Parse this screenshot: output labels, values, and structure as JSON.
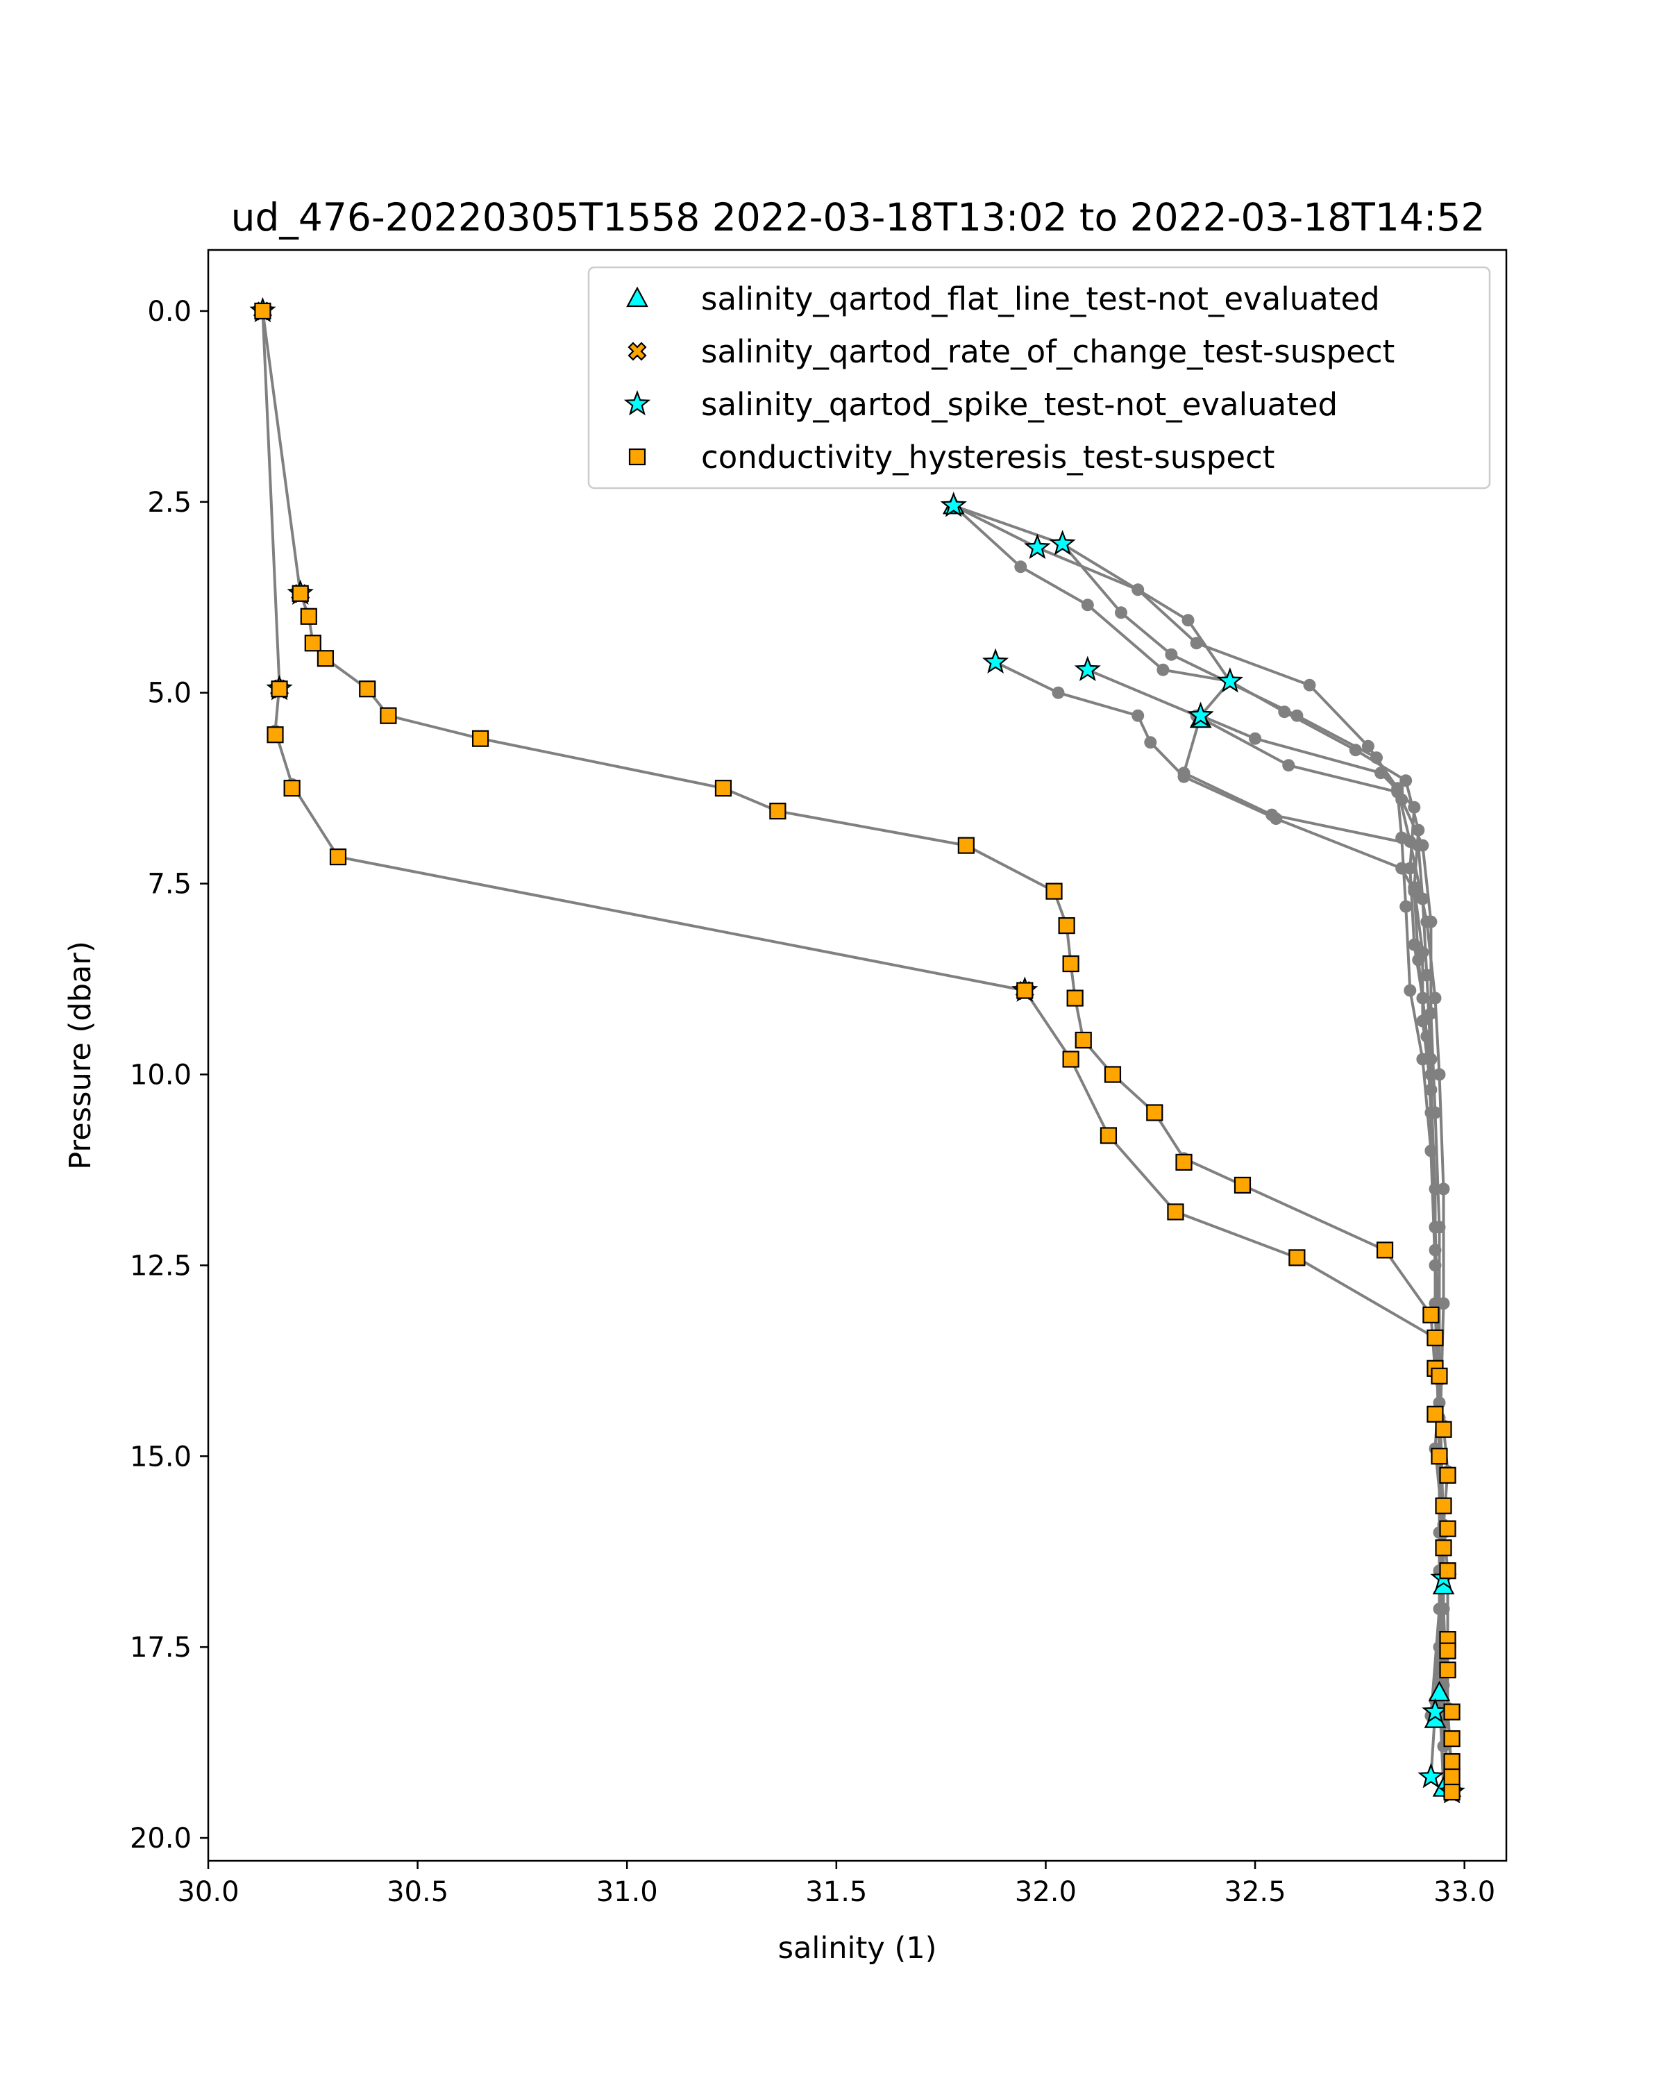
{
  "chart_data": {
    "type": "scatter",
    "title": "ud_476-20220305T1558 2022-03-18T13:02 to 2022-03-18T14:52",
    "xlabel": "salinity (1)",
    "ylabel": "Pressure (dbar)",
    "xlim": [
      30.0,
      33.1
    ],
    "ylim": [
      20.3,
      -0.8
    ],
    "y_inverted": true,
    "xticks": [
      30.0,
      30.5,
      31.0,
      31.5,
      32.0,
      32.5,
      33.0
    ],
    "xtick_labels": [
      "30.0",
      "30.5",
      "31.0",
      "31.5",
      "32.0",
      "32.5",
      "33.0"
    ],
    "yticks": [
      0.0,
      2.5,
      5.0,
      7.5,
      10.0,
      12.5,
      15.0,
      17.5,
      20.0
    ],
    "ytick_labels": [
      "0.0",
      "2.5",
      "5.0",
      "7.5",
      "10.0",
      "12.5",
      "15.0",
      "17.5",
      "20.0"
    ],
    "grid": false,
    "legend_position": "top-right",
    "colors": {
      "line": "#808080",
      "orange": "#FFA500",
      "cyan": "#00FFFF",
      "edge": "#000000"
    },
    "profile_lines": [
      {
        "points": [
          [
            30.13,
            0.0
          ],
          [
            30.17,
            4.9
          ],
          [
            30.16,
            5.5
          ],
          [
            30.2,
            6.2
          ],
          [
            30.31,
            7.15
          ],
          [
            31.95,
            8.9
          ],
          [
            32.06,
            9.8
          ],
          [
            32.15,
            10.8
          ],
          [
            32.31,
            11.8
          ],
          [
            32.6,
            12.4
          ],
          [
            32.93,
            13.45
          ],
          [
            32.94,
            14.0
          ],
          [
            32.93,
            14.9
          ],
          [
            32.95,
            16.0
          ],
          [
            32.95,
            17.0
          ],
          [
            32.96,
            18.3
          ],
          [
            32.97,
            19.4
          ]
        ]
      },
      {
        "points": [
          [
            30.13,
            0.0
          ],
          [
            30.22,
            3.7
          ],
          [
            30.24,
            4.0
          ],
          [
            30.25,
            4.35
          ],
          [
            30.28,
            4.55
          ],
          [
            30.38,
            4.95
          ],
          [
            30.43,
            5.3
          ],
          [
            30.65,
            5.6
          ],
          [
            31.23,
            6.25
          ],
          [
            31.36,
            6.55
          ],
          [
            31.81,
            7.0
          ],
          [
            32.02,
            7.6
          ],
          [
            32.05,
            8.05
          ],
          [
            32.06,
            8.55
          ],
          [
            32.07,
            9.0
          ],
          [
            32.09,
            9.55
          ],
          [
            32.16,
            10.0
          ],
          [
            32.26,
            10.5
          ],
          [
            32.33,
            11.1
          ],
          [
            32.47,
            11.45
          ],
          [
            32.81,
            12.3
          ],
          [
            32.92,
            13.15
          ],
          [
            32.93,
            13.9
          ],
          [
            32.95,
            14.6
          ],
          [
            32.96,
            15.2
          ],
          [
            32.95,
            15.9
          ],
          [
            32.96,
            16.5
          ],
          [
            32.96,
            17.4
          ],
          [
            32.96,
            18.3
          ],
          [
            32.97,
            19.2
          ]
        ]
      },
      {
        "points": [
          [
            31.78,
            2.55
          ],
          [
            31.98,
            3.1
          ],
          [
            32.22,
            3.65
          ],
          [
            32.36,
            4.35
          ],
          [
            32.63,
            4.9
          ],
          [
            32.77,
            5.7
          ],
          [
            32.84,
            6.25
          ],
          [
            32.87,
            6.95
          ],
          [
            32.91,
            8.0
          ],
          [
            32.93,
            9.0
          ],
          [
            32.94,
            10.0
          ],
          [
            32.95,
            11.5
          ],
          [
            32.95,
            13.0
          ],
          [
            32.94,
            15.0
          ],
          [
            32.95,
            17.0
          ],
          [
            32.94,
            18.1
          ],
          [
            32.95,
            19.35
          ]
        ]
      },
      {
        "points": [
          [
            31.78,
            2.55
          ],
          [
            32.04,
            3.05
          ],
          [
            32.18,
            3.95
          ],
          [
            32.3,
            4.5
          ],
          [
            32.6,
            5.3
          ],
          [
            32.79,
            5.85
          ],
          [
            32.85,
            6.4
          ],
          [
            32.9,
            7.0
          ],
          [
            32.92,
            8.0
          ],
          [
            32.92,
            9.2
          ],
          [
            32.93,
            10.5
          ],
          [
            32.94,
            12.0
          ],
          [
            32.94,
            14.0
          ],
          [
            32.95,
            16.5
          ],
          [
            32.93,
            18.2
          ]
        ]
      },
      {
        "points": [
          [
            31.78,
            2.55
          ],
          [
            31.94,
            3.35
          ],
          [
            32.1,
            3.85
          ],
          [
            32.28,
            4.7
          ],
          [
            32.44,
            4.85
          ],
          [
            32.57,
            5.25
          ],
          [
            32.74,
            5.75
          ],
          [
            32.86,
            6.15
          ],
          [
            32.89,
            6.8
          ],
          [
            32.88,
            7.55
          ],
          [
            32.9,
            8.4
          ],
          [
            32.9,
            9.3
          ],
          [
            32.92,
            10.2
          ],
          [
            32.93,
            11.5
          ],
          [
            32.93,
            13.0
          ],
          [
            32.94,
            15.0
          ],
          [
            32.94,
            17.0
          ],
          [
            32.92,
            18.4
          ]
        ]
      },
      {
        "points": [
          [
            32.04,
            3.05
          ],
          [
            32.34,
            4.05
          ],
          [
            32.44,
            4.85
          ],
          [
            32.37,
            5.3
          ],
          [
            32.5,
            5.6
          ],
          [
            32.8,
            6.05
          ],
          [
            32.88,
            6.5
          ],
          [
            32.87,
            7.3
          ],
          [
            32.88,
            8.3
          ],
          [
            32.9,
            9.0
          ],
          [
            32.92,
            10.0
          ],
          [
            32.93,
            12.0
          ],
          [
            32.94,
            14.5
          ],
          [
            32.94,
            17.5
          ],
          [
            32.92,
            19.2
          ]
        ]
      },
      {
        "points": [
          [
            31.88,
            4.6
          ],
          [
            32.03,
            5.0
          ],
          [
            32.22,
            5.3
          ],
          [
            32.25,
            5.65
          ],
          [
            32.33,
            6.1
          ],
          [
            32.55,
            6.65
          ],
          [
            32.85,
            7.3
          ],
          [
            32.88,
            7.6
          ],
          [
            32.89,
            8.5
          ],
          [
            32.91,
            9.5
          ],
          [
            32.92,
            10.5
          ],
          [
            32.93,
            12.0
          ],
          [
            32.94,
            14.0
          ],
          [
            32.94,
            16.0
          ],
          [
            32.95,
            18.0
          ],
          [
            32.96,
            19.4
          ]
        ]
      },
      {
        "points": [
          [
            32.1,
            4.7
          ],
          [
            32.36,
            5.3
          ],
          [
            32.58,
            5.95
          ],
          [
            32.84,
            6.3
          ],
          [
            32.85,
            6.9
          ],
          [
            32.86,
            7.8
          ],
          [
            32.87,
            8.9
          ],
          [
            32.9,
            9.8
          ],
          [
            32.92,
            11.0
          ],
          [
            32.93,
            12.5
          ],
          [
            32.94,
            14.0
          ],
          [
            32.95,
            16.0
          ],
          [
            32.95,
            18.5
          ]
        ]
      },
      {
        "points": [
          [
            32.37,
            5.3
          ],
          [
            32.33,
            6.05
          ],
          [
            32.54,
            6.6
          ],
          [
            32.89,
            7.0
          ],
          [
            32.9,
            7.7
          ],
          [
            32.91,
            8.7
          ],
          [
            32.92,
            9.8
          ],
          [
            32.92,
            11.0
          ],
          [
            32.93,
            12.3
          ],
          [
            32.94,
            14.3
          ],
          [
            32.94,
            16.5
          ],
          [
            32.95,
            18.8
          ]
        ]
      }
    ],
    "series": [
      {
        "name": "salinity_qartod_flat_line_test-not_evaluated",
        "marker": "triangle",
        "color": "#00FFFF",
        "points": [
          [
            31.78,
            2.55
          ],
          [
            32.37,
            5.35
          ],
          [
            32.95,
            16.7
          ],
          [
            32.94,
            18.1
          ],
          [
            32.93,
            18.45
          ],
          [
            32.95,
            19.35
          ]
        ]
      },
      {
        "name": "salinity_qartod_rate_of_change_test-suspect",
        "marker": "x",
        "color": "#FFA500",
        "points": [
          [
            30.13,
            0.0
          ],
          [
            30.22,
            3.7
          ],
          [
            30.17,
            4.95
          ],
          [
            31.95,
            8.9
          ],
          [
            32.97,
            19.4
          ]
        ]
      },
      {
        "name": "salinity_qartod_spike_test-not_evaluated",
        "marker": "star",
        "color": "#00FFFF",
        "points": [
          [
            30.13,
            0.0
          ],
          [
            30.22,
            3.7
          ],
          [
            30.17,
            4.95
          ],
          [
            31.78,
            2.55
          ],
          [
            31.98,
            3.1
          ],
          [
            32.04,
            3.05
          ],
          [
            31.88,
            4.6
          ],
          [
            32.1,
            4.7
          ],
          [
            32.44,
            4.85
          ],
          [
            32.37,
            5.3
          ],
          [
            31.95,
            8.9
          ],
          [
            32.95,
            16.6
          ],
          [
            32.93,
            18.35
          ],
          [
            32.92,
            19.2
          ],
          [
            32.97,
            19.4
          ]
        ]
      },
      {
        "name": "conductivity_hysteresis_test-suspect",
        "marker": "square",
        "color": "#FFA500",
        "points": [
          [
            30.13,
            0.0
          ],
          [
            30.22,
            3.7
          ],
          [
            30.24,
            4.0
          ],
          [
            30.25,
            4.35
          ],
          [
            30.28,
            4.55
          ],
          [
            30.17,
            4.95
          ],
          [
            30.38,
            4.95
          ],
          [
            30.43,
            5.3
          ],
          [
            30.16,
            5.55
          ],
          [
            30.65,
            5.6
          ],
          [
            30.2,
            6.25
          ],
          [
            31.23,
            6.25
          ],
          [
            31.36,
            6.55
          ],
          [
            31.81,
            7.0
          ],
          [
            30.31,
            7.15
          ],
          [
            32.02,
            7.6
          ],
          [
            32.05,
            8.05
          ],
          [
            32.06,
            8.55
          ],
          [
            31.95,
            8.9
          ],
          [
            32.07,
            9.0
          ],
          [
            32.09,
            9.55
          ],
          [
            32.06,
            9.8
          ],
          [
            32.16,
            10.0
          ],
          [
            32.26,
            10.5
          ],
          [
            32.15,
            10.8
          ],
          [
            32.33,
            11.15
          ],
          [
            32.47,
            11.45
          ],
          [
            32.31,
            11.8
          ],
          [
            32.81,
            12.3
          ],
          [
            32.6,
            12.4
          ],
          [
            32.92,
            13.15
          ],
          [
            32.93,
            13.45
          ],
          [
            32.93,
            13.85
          ],
          [
            32.94,
            13.95
          ],
          [
            32.93,
            14.45
          ],
          [
            32.95,
            14.65
          ],
          [
            32.94,
            15.0
          ],
          [
            32.96,
            15.25
          ],
          [
            32.95,
            15.65
          ],
          [
            32.96,
            15.95
          ],
          [
            32.95,
            16.2
          ],
          [
            32.96,
            16.5
          ],
          [
            32.96,
            17.4
          ],
          [
            32.96,
            17.55
          ],
          [
            32.96,
            17.8
          ],
          [
            32.97,
            18.35
          ],
          [
            32.97,
            18.7
          ],
          [
            32.97,
            19.0
          ],
          [
            32.97,
            19.2
          ],
          [
            32.97,
            19.4
          ]
        ]
      }
    ]
  }
}
